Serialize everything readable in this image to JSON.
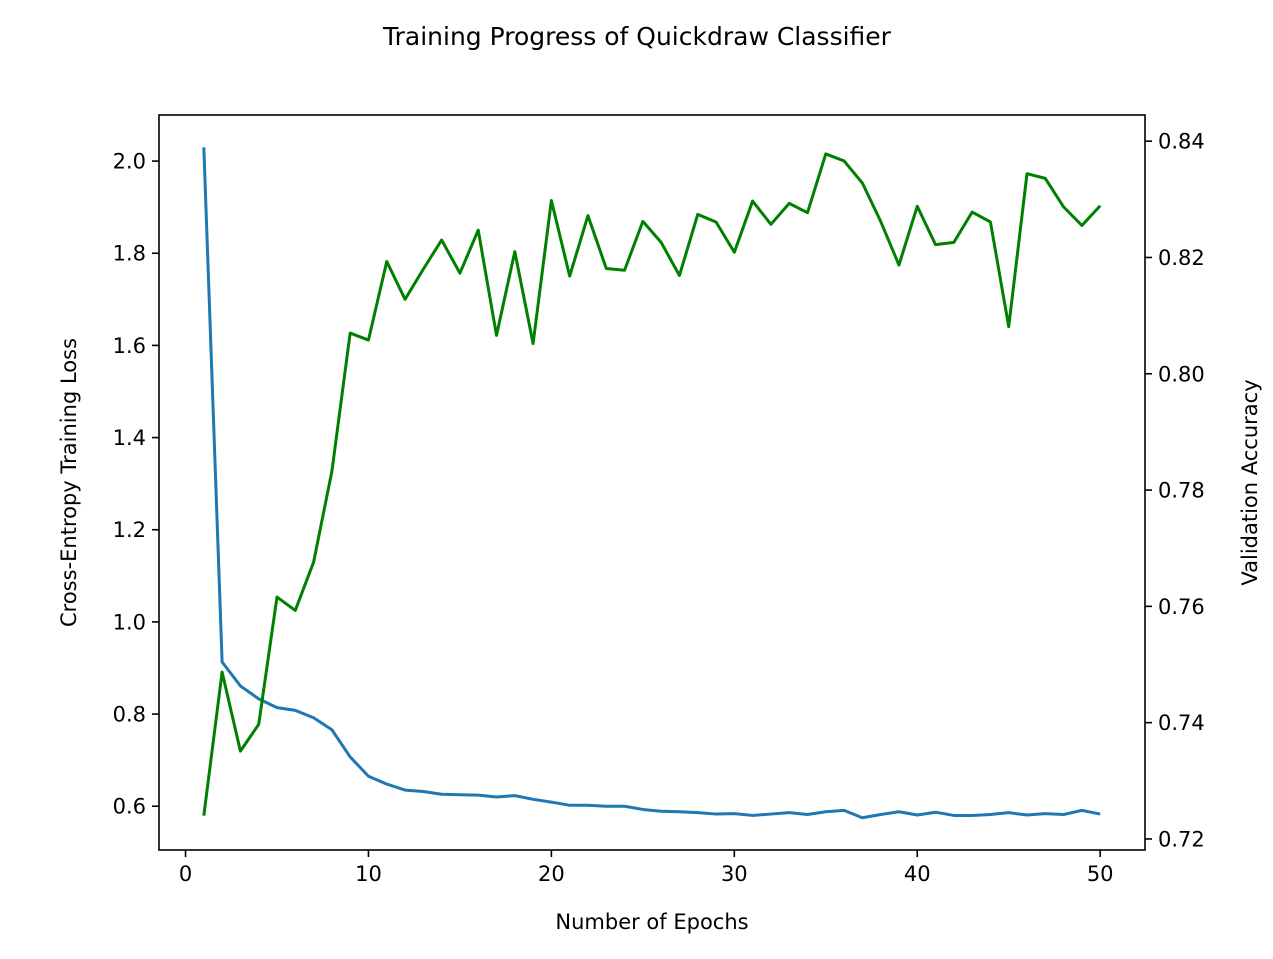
{
  "chart_data": {
    "type": "line",
    "title": "Training Progress of Quickdraw Classifier",
    "xlabel": "Number of Epochs",
    "ylabel": "Cross-Entropy Training Loss",
    "ylabel_right": "Validation Accuracy",
    "xlim": [
      -1.45,
      52.45
    ],
    "ylim": [
      0.505,
      2.1
    ],
    "ylim_right": [
      0.7181,
      0.8445
    ],
    "x_ticks": [
      0,
      10,
      20,
      30,
      40,
      50
    ],
    "y_ticks": [
      0.6,
      0.8,
      1.0,
      1.2,
      1.4,
      1.6,
      1.8,
      2.0
    ],
    "y_tick_labels": [
      "0.6",
      "0.8",
      "1.0",
      "1.2",
      "1.4",
      "1.6",
      "1.8",
      "2.0"
    ],
    "y_ticks_right": [
      0.72,
      0.74,
      0.76,
      0.78,
      0.8,
      0.82,
      0.84
    ],
    "y_tick_labels_right": [
      "0.72",
      "0.74",
      "0.76",
      "0.78",
      "0.80",
      "0.82",
      "0.84"
    ],
    "grid": false,
    "x": [
      1,
      2,
      3,
      4,
      5,
      6,
      7,
      8,
      9,
      10,
      11,
      12,
      13,
      14,
      15,
      16,
      17,
      18,
      19,
      20,
      21,
      22,
      23,
      24,
      25,
      26,
      27,
      28,
      29,
      30,
      31,
      32,
      33,
      34,
      35,
      36,
      37,
      38,
      39,
      40,
      41,
      42,
      43,
      44,
      45,
      46,
      47,
      48,
      49,
      50
    ],
    "series": [
      {
        "axis": "left",
        "color": "#1f77b4",
        "values": [
          2.03,
          0.913,
          0.861,
          0.833,
          0.814,
          0.808,
          0.792,
          0.766,
          0.707,
          0.665,
          0.648,
          0.635,
          0.632,
          0.626,
          0.625,
          0.624,
          0.62,
          0.623,
          0.615,
          0.609,
          0.602,
          0.602,
          0.6,
          0.6,
          0.593,
          0.589,
          0.588,
          0.586,
          0.583,
          0.584,
          0.58,
          0.583,
          0.586,
          0.582,
          0.588,
          0.591,
          0.575,
          0.582,
          0.588,
          0.581,
          0.587,
          0.58,
          0.58,
          0.582,
          0.586,
          0.581,
          0.584,
          0.582,
          0.591,
          0.583
        ]
      },
      {
        "axis": "right",
        "color": "#008000",
        "values": [
          0.724,
          0.7487,
          0.7351,
          0.7397,
          0.7616,
          0.7593,
          0.7676,
          0.7832,
          0.807,
          0.8058,
          0.8193,
          0.8128,
          0.818,
          0.823,
          0.8173,
          0.8247,
          0.8066,
          0.821,
          0.8052,
          0.8298,
          0.8168,
          0.8272,
          0.8181,
          0.8178,
          0.8262,
          0.8226,
          0.8169,
          0.8274,
          0.8261,
          0.8209,
          0.8297,
          0.8257,
          0.8293,
          0.8277,
          0.8378,
          0.8366,
          0.8328,
          0.8262,
          0.8187,
          0.8288,
          0.8222,
          0.8226,
          0.8278,
          0.8261,
          0.8081,
          0.8344,
          0.8336,
          0.8287,
          0.8255,
          0.8289
        ]
      }
    ]
  }
}
